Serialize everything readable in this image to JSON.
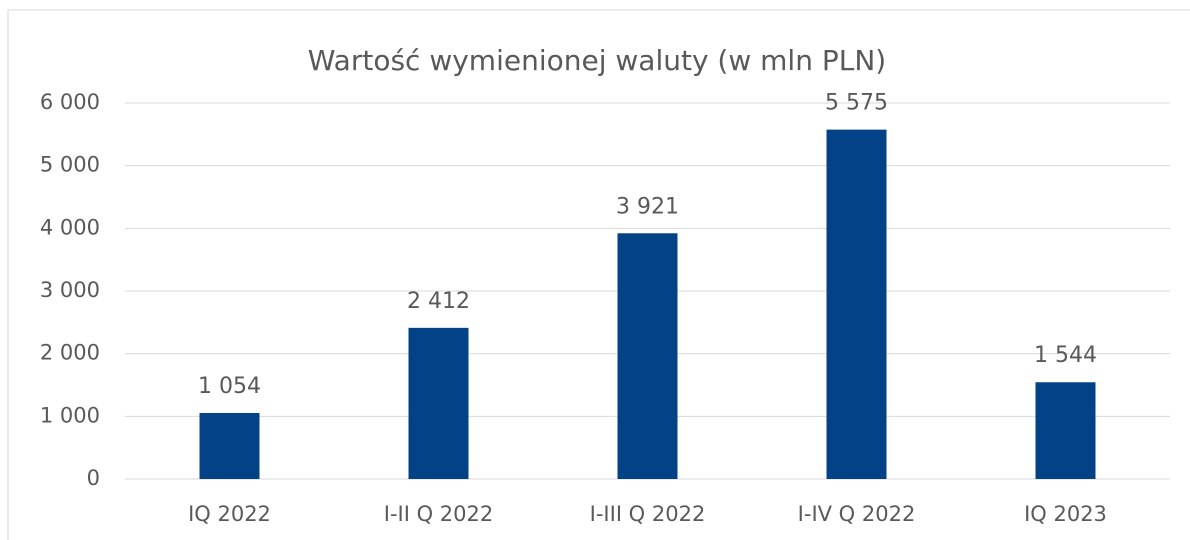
{
  "chart_data": {
    "type": "bar",
    "title": "Wartość wymienionej waluty (w mln PLN)",
    "categories": [
      "IQ 2022",
      "I-II Q 2022",
      "I-III Q 2022",
      "I-IV Q 2022",
      "IQ 2023"
    ],
    "values": [
      1054,
      2412,
      3921,
      5575,
      1544
    ],
    "value_labels": [
      "1 054",
      "2 412",
      "3 921",
      "5 575",
      "1 544"
    ],
    "color": "#034287",
    "ylim": [
      0,
      6000
    ],
    "yticks": [
      0,
      {
        "value": 1000,
        "label": "1 000"
      },
      {
        "value": 2000,
        "label": "2 000"
      },
      {
        "value": 3000,
        "label": "3 000"
      },
      {
        "value": 4000,
        "label": "4 000"
      },
      {
        "value": 5000,
        "label": "5 000"
      },
      {
        "value": 6000,
        "label": "6 000"
      }
    ],
    "grid": true
  }
}
